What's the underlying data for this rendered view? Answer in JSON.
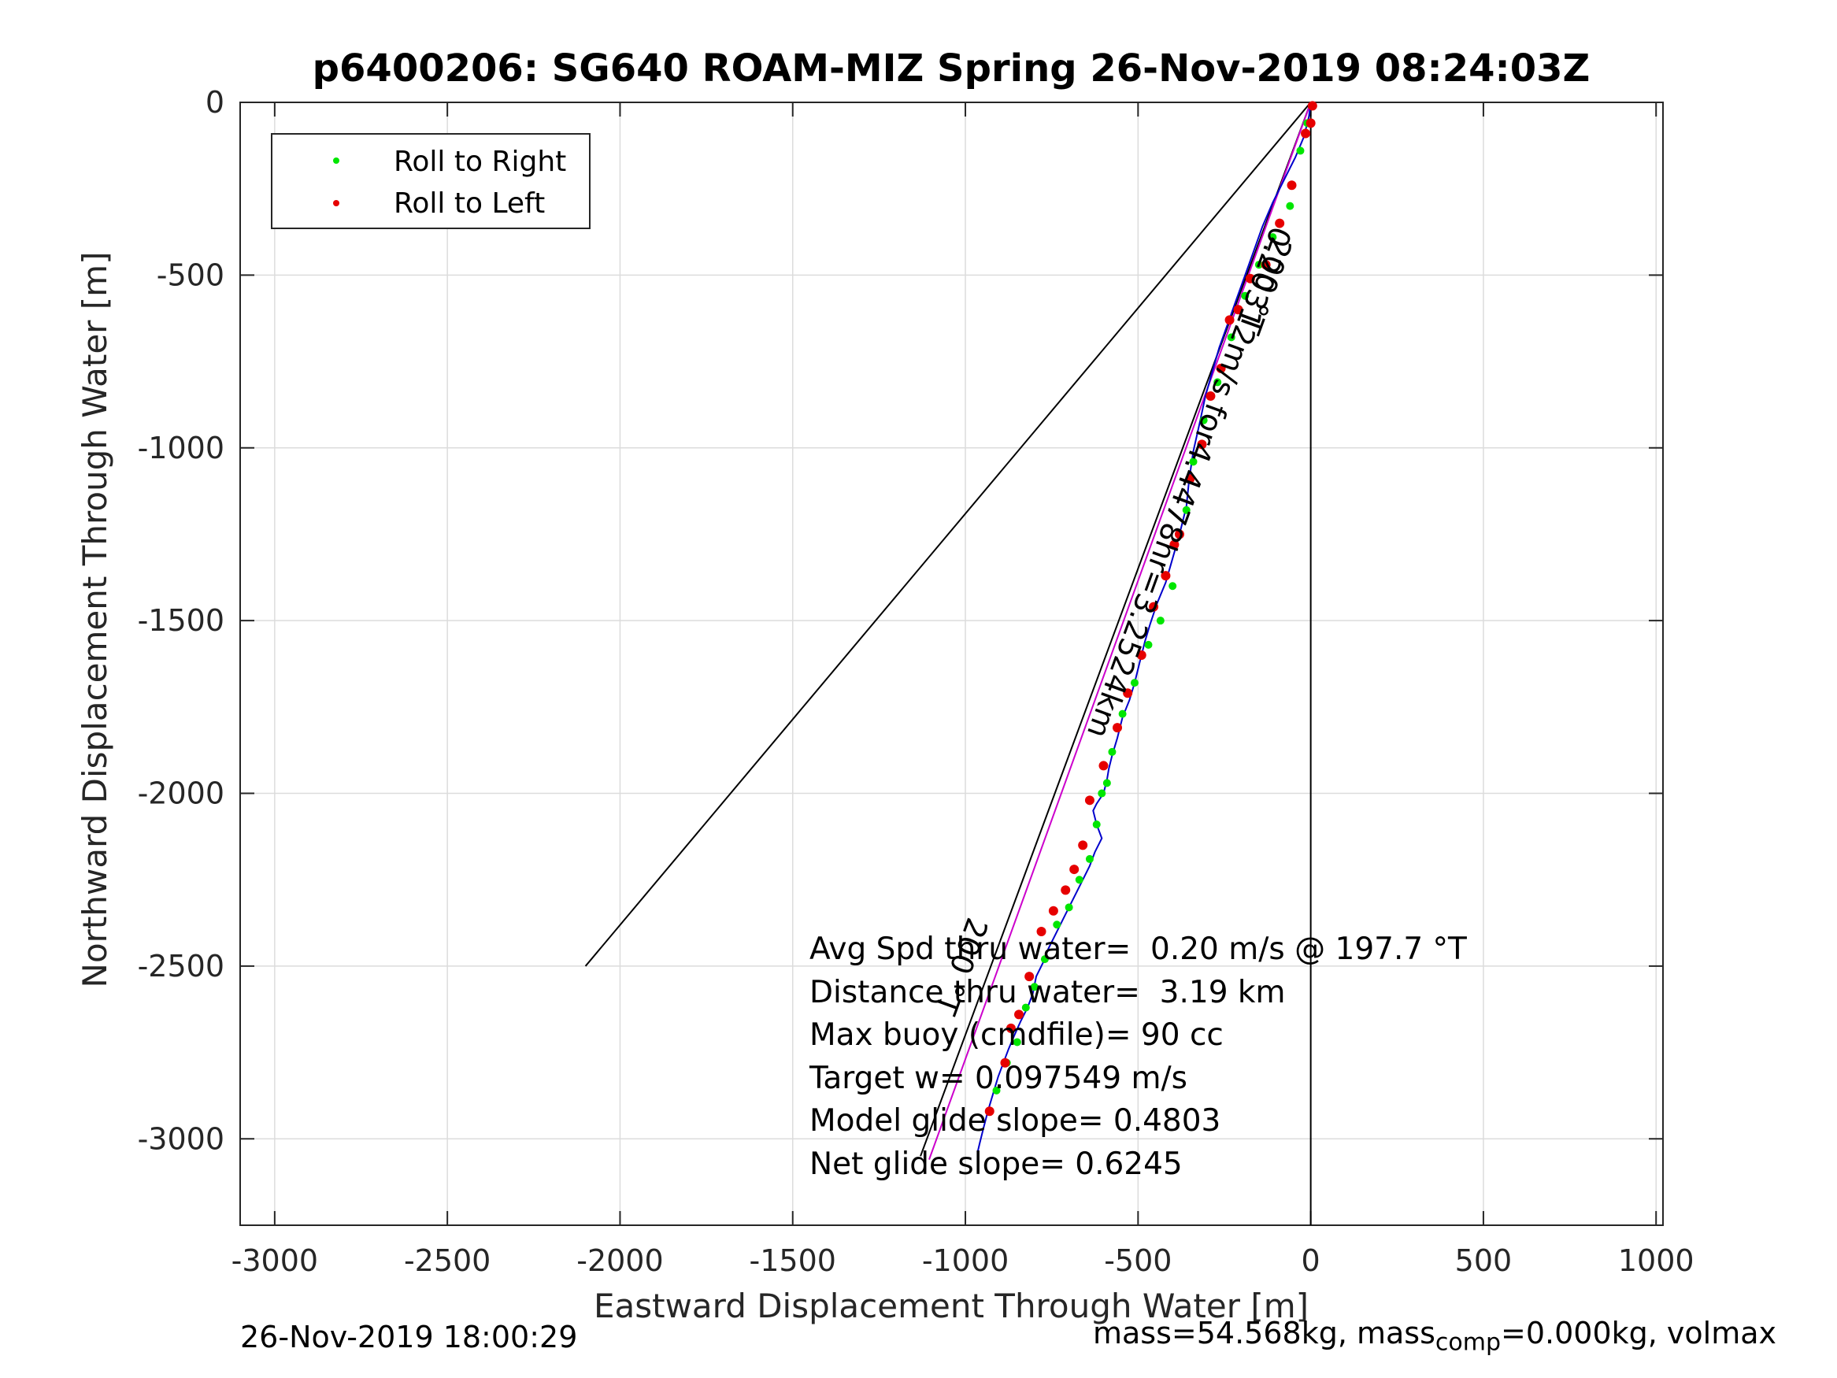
{
  "chart_data": {
    "type": "line",
    "title": "p6400206: SG640 ROAM-MIZ Spring 26-Nov-2019 08:24:03Z",
    "xlabel": "Eastward Displacement Through Water [m]",
    "ylabel": "Northward Displacement Through Water [m]",
    "xlim": [
      -3100,
      1020
    ],
    "ylim": [
      -3250,
      0
    ],
    "xticks": [
      -3000,
      -2500,
      -2000,
      -1500,
      -1000,
      -500,
      0,
      500,
      1000
    ],
    "xtick_labels": [
      "-3000",
      "-2500",
      "-2000",
      "-1500",
      "-1000",
      "-500",
      "0",
      "500",
      "1000"
    ],
    "yticks": [
      0,
      -500,
      -1000,
      -1500,
      -2000,
      -2500,
      -3000
    ],
    "ytick_labels": [
      "0",
      "-500",
      "-1000",
      "-1500",
      "-2000",
      "-2500",
      "-3000"
    ],
    "grid": true,
    "legend": {
      "position": "top-left",
      "entries": [
        {
          "label": "Roll to Right",
          "color": "#00e600"
        },
        {
          "label": "Roll to Left",
          "color": "#e60000"
        }
      ]
    },
    "series": [
      {
        "name": "track",
        "color": "#0000cc",
        "x": [
          0,
          -5,
          -20,
          -45,
          -75,
          -110,
          -140,
          -165,
          -190,
          -215,
          -240,
          -265,
          -285,
          -305,
          -322,
          -340,
          -352,
          -360,
          -380,
          -400,
          -420,
          -445,
          -465,
          -480,
          -495,
          -510,
          -525,
          -545,
          -560,
          -575,
          -585,
          -590,
          -600,
          -620,
          -630,
          -620,
          -605,
          -625,
          -640,
          -660,
          -680,
          -700,
          -720,
          -740,
          -760,
          -775,
          -795,
          -805,
          -820,
          -840,
          -858,
          -875,
          -890,
          -905,
          -920,
          -935,
          -948,
          -958,
          -965
        ],
        "y": [
          0,
          -40,
          -100,
          -160,
          -220,
          -290,
          -360,
          -430,
          -500,
          -570,
          -640,
          -710,
          -780,
          -850,
          -930,
          -1010,
          -1090,
          -1170,
          -1250,
          -1320,
          -1390,
          -1450,
          -1510,
          -1560,
          -1620,
          -1680,
          -1730,
          -1780,
          -1840,
          -1890,
          -1930,
          -1960,
          -2000,
          -2030,
          -2050,
          -2090,
          -2130,
          -2170,
          -2210,
          -2250,
          -2290,
          -2330,
          -2370,
          -2410,
          -2450,
          -2490,
          -2530,
          -2580,
          -2620,
          -2660,
          -2700,
          -2740,
          -2780,
          -2820,
          -2870,
          -2920,
          -2970,
          -3010,
          -3040
        ]
      }
    ],
    "roll_right_points": {
      "x": [
        -10,
        -30,
        -60,
        -110,
        -150,
        -190,
        -230,
        -270,
        -310,
        -340,
        -360,
        -400,
        -435,
        -470,
        -510,
        -545,
        -575,
        -590,
        -605,
        -620,
        -640,
        -670,
        -700,
        -735,
        -770,
        -800,
        -825,
        -850,
        -880,
        -910
      ],
      "y": [
        -60,
        -140,
        -300,
        -390,
        -470,
        -560,
        -680,
        -810,
        -920,
        -1040,
        -1180,
        -1400,
        -1500,
        -1570,
        -1680,
        -1770,
        -1880,
        -1970,
        -2000,
        -2090,
        -2190,
        -2250,
        -2330,
        -2380,
        -2480,
        -2560,
        -2620,
        -2720,
        -2780,
        -2860
      ]
    },
    "roll_left_points": {
      "x": [
        5,
        0,
        -15,
        -55,
        -90,
        -130,
        -175,
        -210,
        -235,
        -260,
        -290,
        -315,
        -350,
        -380,
        -395,
        -420,
        -455,
        -490,
        -530,
        -560,
        -600,
        -640,
        -660,
        -685,
        -710,
        -745,
        -780,
        -815,
        -845,
        -868,
        -885,
        -930
      ],
      "y": [
        -10,
        -60,
        -90,
        -240,
        -350,
        -470,
        -510,
        -600,
        -630,
        -770,
        -850,
        -990,
        -1090,
        -1250,
        -1280,
        -1370,
        -1460,
        -1600,
        -1710,
        -1810,
        -1920,
        -2020,
        -2150,
        -2220,
        -2280,
        -2340,
        -2400,
        -2530,
        -2640,
        -2680,
        -2780,
        -2920
      ]
    },
    "reference_lines": [
      {
        "name": "heading-line",
        "color": "#000000",
        "x": [
          0,
          -2100
        ],
        "y": [
          0,
          -2500
        ]
      },
      {
        "name": "vertical-zero-line",
        "color": "#000000",
        "x": [
          0,
          0
        ],
        "y": [
          0,
          -3250
        ]
      },
      {
        "name": "dashed-line",
        "color": "#000000",
        "x": [
          0,
          -1130
        ],
        "y": [
          0,
          -3050
        ]
      },
      {
        "name": "net-line",
        "color": "#cc00cc",
        "x": [
          0,
          -1105
        ],
        "y": [
          0,
          -3060
        ]
      }
    ],
    "annotations": [
      {
        "text": "200 °T",
        "x": -160,
        "y": -520,
        "rotation": 110
      },
      {
        "text": "0.20312m/s for4.4478hr=3.2524km",
        "x": -380,
        "y": -1090,
        "rotation": 110
      },
      {
        "text": "200 °T",
        "x": -1040,
        "y": -2490,
        "rotation": 110
      }
    ],
    "stats_lines": [
      "Avg Spd thru water=  0.20 m/s @ 197.7 °T",
      "Distance thru water=  3.19 km",
      "Max buoy (cmdfile)= 90 cc",
      "Target w= 0.097549 m/s",
      "Model glide slope= 0.4803",
      "Net glide slope= 0.6245"
    ]
  },
  "footer": {
    "timestamp": "26-Nov-2019 18:00:29",
    "mass_text_pre": "mass=54.568kg, mass",
    "mass_text_sub": "comp",
    "mass_text_post": "=0.000kg, volmax"
  }
}
